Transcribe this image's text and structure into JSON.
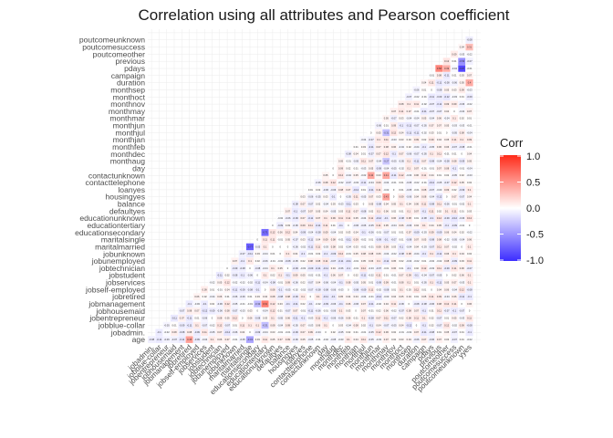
{
  "chart_data": {
    "type": "heatmap",
    "title": "Correlation using all attributes and Pearson coefficient",
    "variables": [
      "age",
      "jobadmin.",
      "jobblue-collar",
      "jobentrepreneur",
      "jobhousemaid",
      "jobmanagement",
      "jobretired",
      "jobself-employed",
      "jobservices",
      "jobstudent",
      "jobtechnician",
      "jobunemployed",
      "jobunknown",
      "maritalmarried",
      "maritalsingle",
      "educationsecondary",
      "educationtertiary",
      "educationunknown",
      "defaultyes",
      "balance",
      "housingyes",
      "loanyes",
      "contacttelephone",
      "contactunknown",
      "day",
      "monthaug",
      "monthdec",
      "monthfeb",
      "monthjan",
      "monthjul",
      "monthjun",
      "monthmar",
      "monthmay",
      "monthnov",
      "monthoct",
      "monthsep",
      "duration",
      "campaign",
      "pdays",
      "previous",
      "poutcomeother",
      "poutcomesuccess",
      "poutcomeunknown",
      "yyes"
    ],
    "strong_cells": [
      {
        "row": "jobmanagement",
        "col": "educationtertiary",
        "value": 0.61
      },
      {
        "row": "maritalmarried",
        "col": "maritalsingle",
        "value": -0.77
      },
      {
        "row": "educationsecondary",
        "col": "educationtertiary",
        "value": -0.71
      },
      {
        "row": "pdays",
        "col": "previous",
        "value": 0.58
      },
      {
        "row": "pdays",
        "col": "poutcomeunknown",
        "value": -0.87
      },
      {
        "row": "previous",
        "col": "poutcomeunknown",
        "value": -0.53
      },
      {
        "row": "poutcomesuccess",
        "col": "yyes",
        "value": 0.31
      },
      {
        "row": "pdays",
        "col": "poutcomeother",
        "value": 0.39
      },
      {
        "row": "duration",
        "col": "yyes",
        "value": 0.4
      },
      {
        "row": "contactunknown",
        "col": "monthmay",
        "value": 0.41
      },
      {
        "row": "age",
        "col": "jobretired",
        "value": 0.45
      },
      {
        "row": "age",
        "col": "maritalsingle",
        "value": -0.43
      },
      {
        "row": "jobblue-collar",
        "col": "educationtertiary",
        "value": -0.31
      },
      {
        "row": "jobblue-collar",
        "col": "educationsecondary",
        "value": 0.1
      },
      {
        "row": "housingyes",
        "col": "monthmay",
        "value": 0.43
      },
      {
        "row": "contactunknown",
        "col": "monthjun",
        "value": 0.42
      },
      {
        "row": "educationsecondary",
        "col": "jobmanagement",
        "value": -0.32
      },
      {
        "row": "monthaug",
        "col": "monthmay",
        "value": -0.27
      },
      {
        "row": "monthjul",
        "col": "monthmay",
        "value": -0.31
      }
    ],
    "legend": {
      "title": "Corr",
      "ticks": [
        "1.0",
        "0.5",
        "0.0",
        "-0.5",
        "-1.0"
      ],
      "range": [
        -1,
        1
      ]
    },
    "low_color": "#3b2cff",
    "mid_color": "#ffffff",
    "high_color": "#ff2a18"
  }
}
